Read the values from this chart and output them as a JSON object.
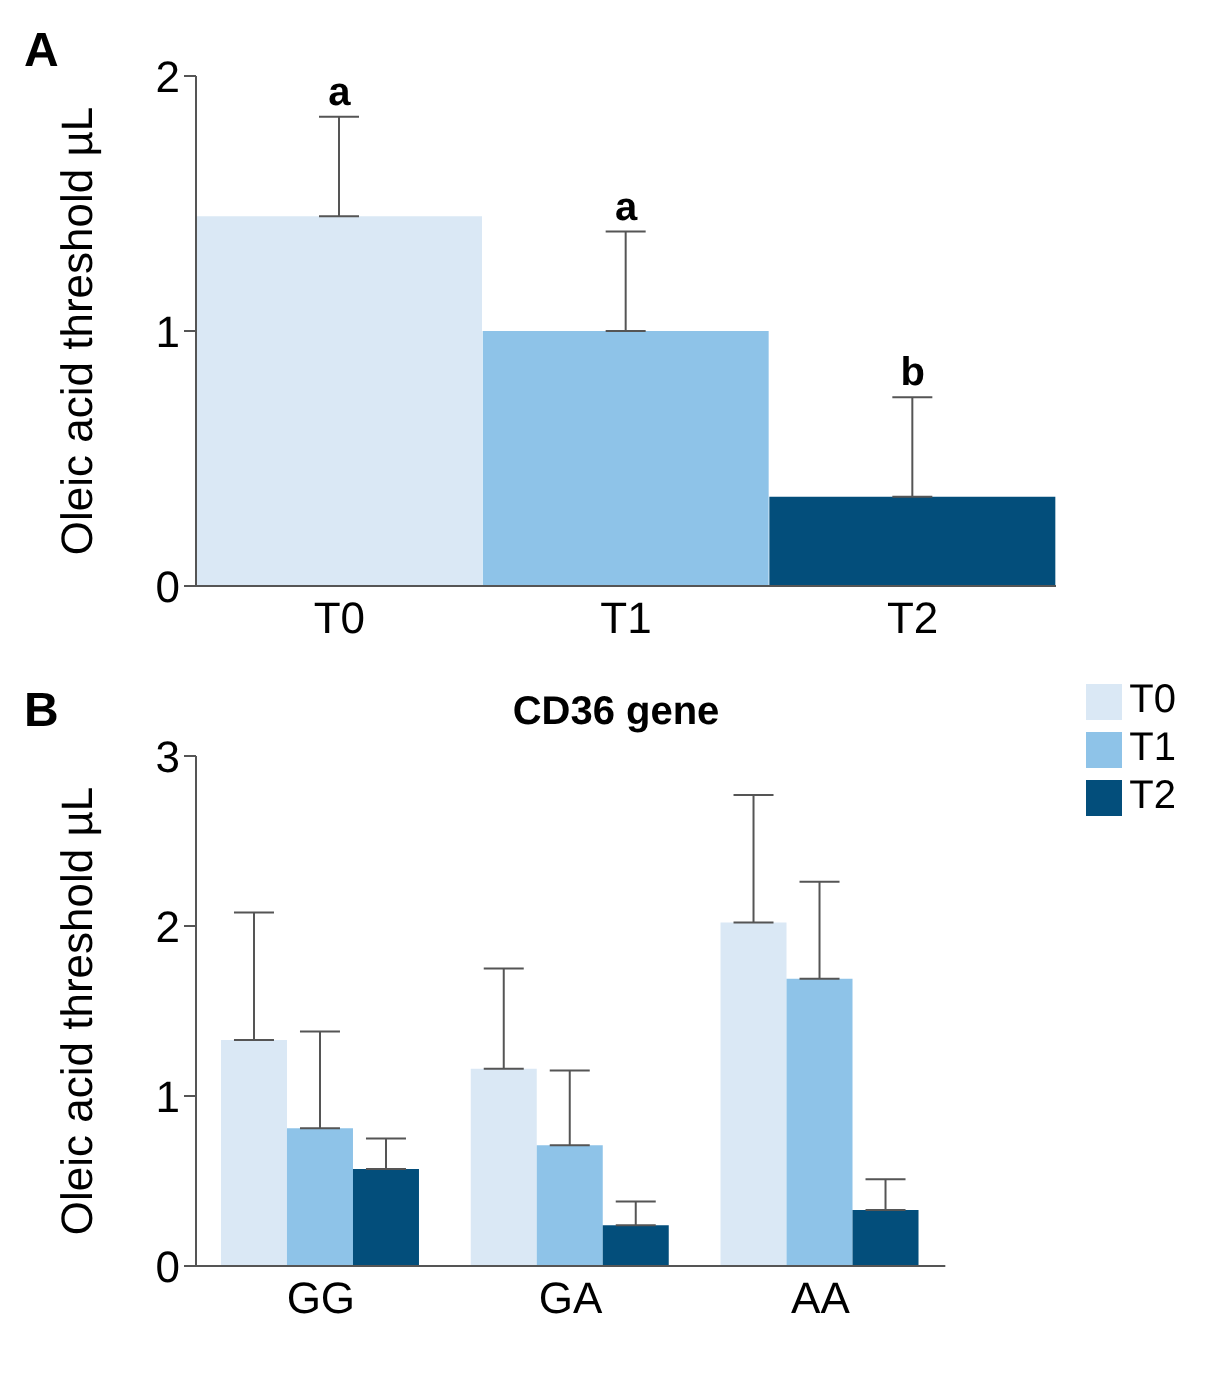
{
  "chart_data": [
    {
      "type": "bar",
      "categories": [
        "T0",
        "T1",
        "T2"
      ],
      "values": [
        1.45,
        1.0,
        0.35
      ],
      "colors": [
        "#dae8f5",
        "#8ec3e8",
        "#034e7b"
      ],
      "errors": [
        [
          1.45,
          1.84
        ],
        [
          1.0,
          1.39
        ],
        [
          0.35,
          0.74
        ]
      ],
      "ylabel": "Oleic acid threshold µL",
      "ylim": [
        0,
        2
      ],
      "yticks": [
        0,
        1,
        2
      ],
      "grid": false,
      "legend": false,
      "annotations": [
        "A",
        {
          "text": "a",
          "x": "T0",
          "y": 1.84
        },
        {
          "text": "a",
          "x": "T1",
          "y": 1.39
        },
        {
          "text": "b",
          "x": "T2",
          "y": 0.74
        }
      ]
    },
    {
      "type": "bar",
      "title": "CD36 gene",
      "categories": [
        "GG",
        "GA",
        "AA"
      ],
      "series": [
        {
          "name": "T0",
          "color": "#dae8f5",
          "values": [
            1.33,
            1.16,
            2.02
          ],
          "errors": [
            [
              1.33,
              2.08
            ],
            [
              1.16,
              1.75
            ],
            [
              2.02,
              2.77
            ]
          ]
        },
        {
          "name": "T1",
          "color": "#8ec3e8",
          "values": [
            0.81,
            0.71,
            1.69
          ],
          "errors": [
            [
              0.81,
              1.38
            ],
            [
              0.71,
              1.15
            ],
            [
              1.69,
              2.26
            ]
          ]
        },
        {
          "name": "T2",
          "color": "#034e7b",
          "values": [
            0.57,
            0.24,
            0.33
          ],
          "errors": [
            [
              0.57,
              0.75
            ],
            [
              0.24,
              0.38
            ],
            [
              0.33,
              0.51
            ]
          ]
        }
      ],
      "ylabel": "Oleic acid threshold µL",
      "ylim": [
        0,
        3
      ],
      "yticks": [
        0,
        1,
        2,
        3
      ],
      "grid": false,
      "legend": "top right",
      "annotations": [
        "B"
      ]
    }
  ]
}
